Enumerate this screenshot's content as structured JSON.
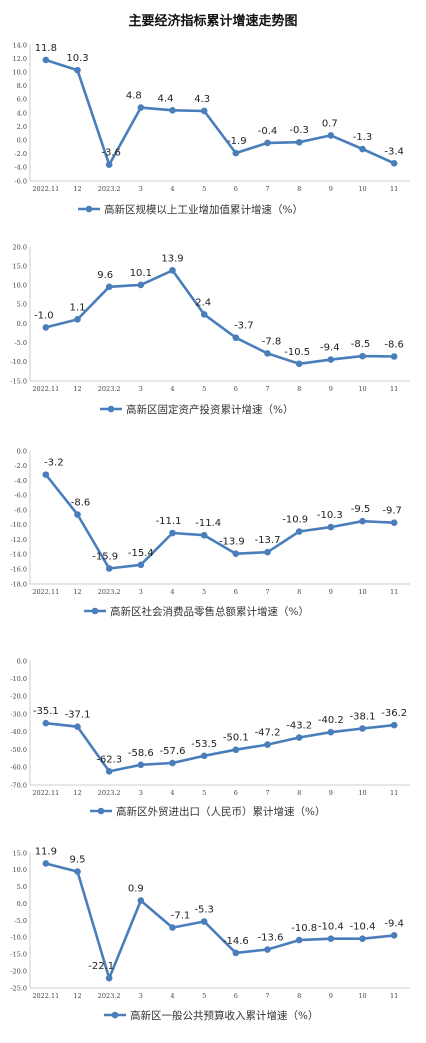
{
  "page_title": "主要经济指标累计增速走势图",
  "colors": {
    "line": "#4a7ebb",
    "axis": "#bfbfbf",
    "text": "#333333"
  },
  "chart_data": [
    {
      "type": "line",
      "categories": [
        "2022.11",
        "12",
        "2023.2",
        "3",
        "4",
        "5",
        "6",
        "7",
        "8",
        "9",
        "10",
        "11"
      ],
      "series": [
        {
          "name": "高新区规模以上工业增加值累计增速（%）",
          "values": [
            11.8,
            10.3,
            -3.6,
            4.8,
            4.4,
            4.3,
            -1.9,
            -0.4,
            -0.3,
            0.7,
            -1.3,
            -3.4
          ]
        }
      ],
      "ylim": [
        -6,
        14
      ],
      "yticks": [
        "14.0",
        "12.0",
        "10.0",
        "8.0",
        "6.0",
        "4.0",
        "2.0",
        "0.0",
        "-2.0",
        "-4.0",
        "-6.0"
      ],
      "data_labels": [
        "11.8",
        "10.3",
        "-3.6",
        "4.8",
        "4.4",
        "4.3",
        "-1.9",
        "-0.4",
        "-0.3",
        "0.7",
        "-1.3",
        "-3.4"
      ],
      "legend": "bottom"
    },
    {
      "type": "line",
      "categories": [
        "2022.11",
        "12",
        "2023.2",
        "3",
        "4",
        "5",
        "6",
        "7",
        "8",
        "9",
        "10",
        "11"
      ],
      "series": [
        {
          "name": "高新区固定资产投资累计增速（%）",
          "values": [
            -1.0,
            1.1,
            9.6,
            10.1,
            13.9,
            2.4,
            -3.7,
            -7.8,
            -10.5,
            -9.4,
            -8.5,
            -8.6
          ]
        }
      ],
      "ylim": [
        -15,
        20
      ],
      "yticks": [
        "20.0",
        "15.0",
        "10.0",
        "5.0",
        "0.0",
        "-5.0",
        "-10.0",
        "-15.0"
      ],
      "data_labels": [
        "-1.0",
        "1.1",
        "9.6",
        "10.1",
        "13.9",
        "2.4",
        "-3.7",
        "-7.8",
        "-10.5",
        "-9.4",
        "-8.5",
        "-8.6"
      ],
      "legend": "bottom"
    },
    {
      "type": "line",
      "categories": [
        "2022.11",
        "12",
        "2023.2",
        "3",
        "4",
        "5",
        "6",
        "7",
        "8",
        "9",
        "10",
        "11"
      ],
      "series": [
        {
          "name": "高新区社会消费品零售总额累计增速（%）",
          "values": [
            -3.2,
            -8.6,
            -15.9,
            -15.4,
            -11.1,
            -11.4,
            -13.9,
            -13.7,
            -10.9,
            -10.3,
            -9.5,
            -9.7
          ]
        }
      ],
      "ylim": [
        -18,
        0
      ],
      "yticks": [
        "0.0",
        "-2.0",
        "-4.0",
        "-6.0",
        "-8.0",
        "-10.0",
        "-12.0",
        "-14.0",
        "-16.0",
        "-18.0"
      ],
      "data_labels": [
        "-3.2",
        "-8.6",
        "-15.9",
        "-15.4",
        "-11.1",
        "-11.4",
        "-13.9",
        "-13.7",
        "-10.9",
        "-10.3",
        "-9.5",
        "-9.7"
      ],
      "legend": "bottom"
    },
    {
      "type": "line",
      "categories": [
        "2022.11",
        "12",
        "2023.2",
        "3",
        "4",
        "5",
        "6",
        "7",
        "8",
        "9",
        "10",
        "11"
      ],
      "series": [
        {
          "name": "高新区外贸进出口（人民币）累计增速（%）",
          "values": [
            -35.1,
            -37.1,
            -62.3,
            -58.6,
            -57.6,
            -53.5,
            -50.1,
            -47.2,
            -43.2,
            -40.2,
            -38.1,
            -36.2
          ]
        }
      ],
      "ylim": [
        -70,
        0
      ],
      "yticks": [
        "0.0",
        "-10.0",
        "-20.0",
        "-30.0",
        "-40.0",
        "-50.0",
        "-60.0",
        "-70.0"
      ],
      "data_labels": [
        "-35.1",
        "-37.1",
        "-62.3",
        "-58.6",
        "-57.6",
        "-53.5",
        "-50.1",
        "-47.2",
        "-43.2",
        "-40.2",
        "-38.1",
        "-36.2"
      ],
      "legend": "bottom"
    },
    {
      "type": "line",
      "categories": [
        "2022.11",
        "12",
        "2023.2",
        "3",
        "4",
        "5",
        "6",
        "7",
        "8",
        "9",
        "10",
        "11"
      ],
      "series": [
        {
          "name": "高新区一般公共预算收入累计增速（%）",
          "values": [
            11.9,
            9.5,
            -22.1,
            0.9,
            -7.1,
            -5.3,
            -14.6,
            -13.6,
            -10.8,
            -10.4,
            -10.4,
            -9.4
          ]
        }
      ],
      "ylim": [
        -25,
        15
      ],
      "yticks": [
        "15.0",
        "10.0",
        "5.0",
        "0.0",
        "-5.0",
        "-10.0",
        "-15.0",
        "-20.0",
        "-25.0"
      ],
      "data_labels": [
        "11.9",
        "9.5",
        "-22.1",
        "0.9",
        "-7.1",
        "-5.3",
        "-14.6",
        "-13.6",
        "-10.8",
        "-10.4",
        "-10.4",
        "-9.4"
      ],
      "legend": "bottom"
    }
  ]
}
